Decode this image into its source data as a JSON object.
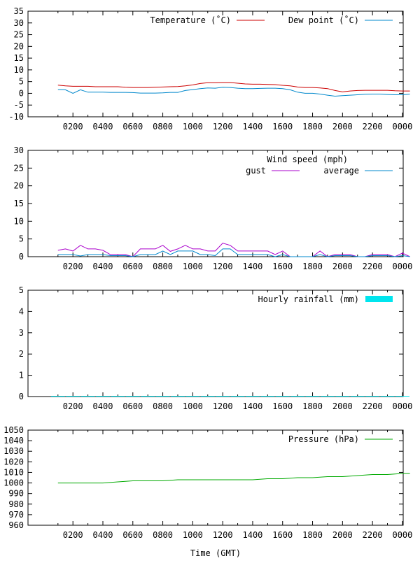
{
  "xlabel": "Time (GMT)",
  "x_tick_labels": [
    "0200",
    "0400",
    "0600",
    "0800",
    "1000",
    "1200",
    "1400",
    "1600",
    "1800",
    "2000",
    "2200",
    "0000"
  ],
  "chart_data": [
    {
      "type": "line",
      "title": "",
      "ylim": [
        -10,
        35
      ],
      "yticks": [
        -10,
        -5,
        0,
        5,
        10,
        15,
        20,
        25,
        30,
        35
      ],
      "x_hours": [
        0,
        0.5,
        1,
        1.5,
        2,
        2.5,
        3,
        3.5,
        4,
        4.5,
        5,
        5.5,
        6,
        6.5,
        7,
        7.5,
        8,
        8.5,
        9,
        9.5,
        10,
        10.5,
        11,
        11.5,
        12,
        12.5,
        13,
        13.5,
        14,
        14.5,
        15,
        15.5,
        16,
        16.5,
        17,
        17.5,
        18,
        18.5,
        19,
        19.5,
        20,
        20.5,
        21,
        21.5,
        22,
        22.5,
        23,
        23.5
      ],
      "series": [
        {
          "name": "Temperature (˚C)",
          "color": "#cc0000",
          "values": [
            3.5,
            3.2,
            3.0,
            3.0,
            3.0,
            2.8,
            2.8,
            2.8,
            2.8,
            2.6,
            2.5,
            2.5,
            2.5,
            2.6,
            2.7,
            2.8,
            2.9,
            3.2,
            3.6,
            4.2,
            4.5,
            4.5,
            4.6,
            4.6,
            4.3,
            4.0,
            3.9,
            3.9,
            3.8,
            3.7,
            3.4,
            3.2,
            2.7,
            2.5,
            2.5,
            2.3,
            2.0,
            1.2,
            0.6,
            1.0,
            1.2,
            1.3,
            1.3,
            1.3,
            1.3,
            1.1,
            1.0,
            1.0
          ]
        },
        {
          "name": "Dew point (˚C)",
          "color": "#0088cc",
          "values": [
            1.6,
            1.5,
            0.0,
            1.5,
            0.5,
            0.5,
            0.5,
            0.4,
            0.4,
            0.4,
            0.3,
            0.1,
            0.1,
            0.1,
            0.2,
            0.4,
            0.4,
            1.2,
            1.6,
            2.0,
            2.3,
            2.2,
            2.6,
            2.5,
            2.2,
            2.0,
            2.0,
            2.1,
            2.2,
            2.2,
            2.0,
            1.5,
            0.5,
            0.0,
            0.0,
            -0.3,
            -0.8,
            -1.2,
            -1.0,
            -0.8,
            -0.6,
            -0.4,
            -0.3,
            -0.3,
            -0.5,
            -0.6,
            -0.6,
            -0.3
          ]
        }
      ],
      "legend": "top-right"
    },
    {
      "type": "line",
      "title": "Wind speed (mph)",
      "ylim": [
        0,
        30
      ],
      "yticks": [
        0,
        5,
        10,
        15,
        20,
        25,
        30
      ],
      "x_hours": [
        0,
        0.5,
        1,
        1.5,
        2,
        2.5,
        3,
        3.5,
        4,
        4.5,
        5,
        5.5,
        6,
        6.5,
        7,
        7.5,
        8,
        8.5,
        9,
        9.5,
        10,
        10.5,
        11,
        11.5,
        12,
        12.5,
        13,
        13.5,
        14,
        14.5,
        15,
        15.5,
        16,
        16.5,
        17,
        17.5,
        18,
        18.5,
        19,
        19.5,
        20,
        20.5,
        21,
        21.5,
        22,
        22.5,
        23,
        23.5
      ],
      "series": [
        {
          "name": "gust",
          "color": "#aa00cc",
          "values": [
            1.8,
            2.2,
            1.6,
            3.2,
            2.2,
            2.2,
            1.8,
            0.6,
            0.6,
            0.6,
            0.0,
            2.2,
            2.2,
            2.2,
            3.2,
            1.5,
            2.2,
            3.2,
            2.2,
            2.2,
            1.6,
            1.6,
            3.8,
            3.2,
            1.6,
            1.6,
            1.6,
            1.6,
            1.6,
            0.6,
            1.6,
            0.0,
            0.0,
            0.0,
            0.0,
            1.6,
            0.0,
            0.6,
            0.6,
            0.6,
            0.0,
            0.0,
            0.6,
            0.6,
            0.6,
            0.0,
            1.0,
            0.0
          ]
        },
        {
          "name": "average",
          "color": "#0088cc",
          "values": [
            0.6,
            0.6,
            0.6,
            0.2,
            0.6,
            0.6,
            0.6,
            0.3,
            0.3,
            0.3,
            0.0,
            0.6,
            0.6,
            0.6,
            1.6,
            0.6,
            1.6,
            1.6,
            1.6,
            0.6,
            0.6,
            0.3,
            2.2,
            2.2,
            0.6,
            0.6,
            0.6,
            0.6,
            0.6,
            0.0,
            0.6,
            0.0,
            0.0,
            0.0,
            0.0,
            0.6,
            0.0,
            0.3,
            0.3,
            0.3,
            0.0,
            0.0,
            0.3,
            0.3,
            0.3,
            0.0,
            0.3,
            0.0
          ]
        }
      ],
      "legend": "top-right"
    },
    {
      "type": "bar",
      "title": "",
      "ylim": [
        0,
        5
      ],
      "yticks": [
        0,
        1,
        2,
        3,
        4,
        5
      ],
      "x_hours": [
        0,
        1,
        2,
        3,
        4,
        5,
        6,
        7,
        8,
        9,
        10,
        11,
        12,
        13,
        14,
        15,
        16,
        17,
        18,
        19,
        20,
        21,
        22,
        23
      ],
      "series": [
        {
          "name": "Hourly rainfall (mm)",
          "color": "#00e5ee",
          "values": [
            0,
            0,
            0,
            0,
            0,
            0,
            0,
            0,
            0,
            0,
            0,
            0,
            0,
            0,
            0,
            0,
            0,
            0,
            0,
            0,
            0,
            0,
            0,
            0
          ]
        }
      ],
      "legend": "top-right"
    },
    {
      "type": "line",
      "title": "",
      "ylim": [
        960,
        1050
      ],
      "yticks": [
        960,
        970,
        980,
        990,
        1000,
        1010,
        1020,
        1030,
        1040,
        1050
      ],
      "x_hours": [
        0,
        1,
        2,
        3,
        4,
        5,
        6,
        7,
        8,
        9,
        10,
        11,
        12,
        13,
        14,
        15,
        16,
        17,
        18,
        19,
        20,
        21,
        22,
        23,
        23.5
      ],
      "series": [
        {
          "name": "Pressure (hPa)",
          "color": "#00aa00",
          "values": [
            1000,
            1000,
            1000,
            1000,
            1001,
            1002,
            1002,
            1002,
            1003,
            1003,
            1003,
            1003,
            1003,
            1003,
            1004,
            1004,
            1005,
            1005,
            1006,
            1006,
            1007,
            1008,
            1008,
            1009,
            1009
          ]
        }
      ],
      "legend": "top-right"
    }
  ]
}
